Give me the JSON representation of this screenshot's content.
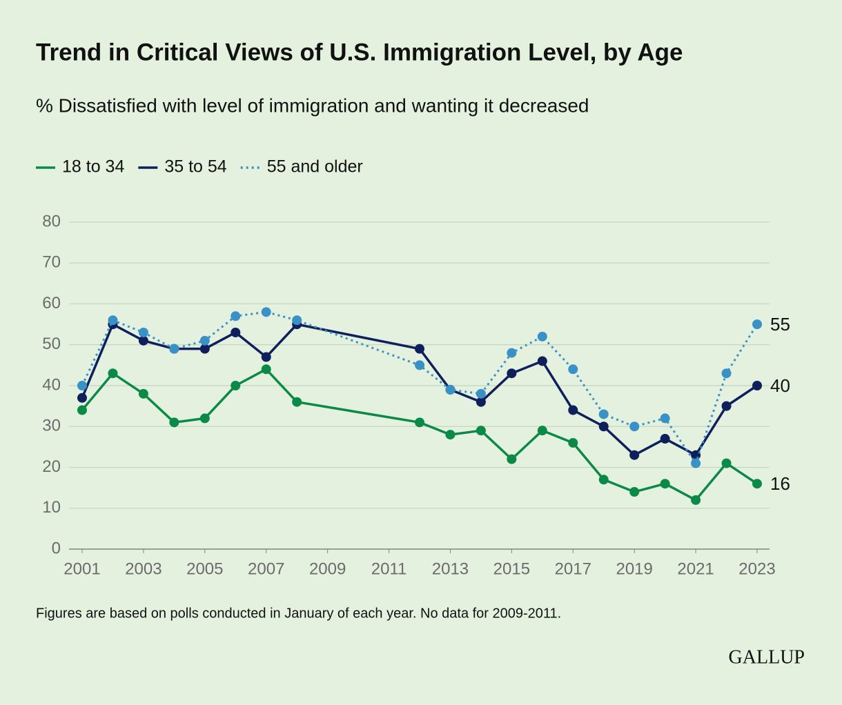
{
  "chart_data": {
    "type": "line",
    "title": "Trend in Critical Views of U.S. Immigration Level, by Age",
    "subtitle": "% Dissatisfied with level of immigration and wanting it decreased",
    "x": [
      2001,
      2002,
      2003,
      2004,
      2005,
      2006,
      2007,
      2008,
      2012,
      2013,
      2014,
      2015,
      2016,
      2017,
      2018,
      2019,
      2020,
      2021,
      2022,
      2023
    ],
    "series": [
      {
        "name": "18 to 34",
        "color": "#0b8a47",
        "line_style": "solid",
        "values": [
          34,
          43,
          38,
          31,
          32,
          40,
          44,
          36,
          31,
          28,
          29,
          22,
          29,
          26,
          17,
          14,
          16,
          12,
          21,
          16
        ]
      },
      {
        "name": "35 to 54",
        "color": "#0e1f5b",
        "line_style": "solid",
        "values": [
          37,
          55,
          51,
          49,
          49,
          53,
          47,
          55,
          49,
          39,
          36,
          43,
          46,
          34,
          30,
          23,
          27,
          23,
          35,
          40
        ]
      },
      {
        "name": "55 and older",
        "color": "#3a91c6",
        "line_style": "dotted",
        "values": [
          40,
          56,
          53,
          49,
          51,
          57,
          58,
          56,
          45,
          39,
          38,
          48,
          52,
          44,
          33,
          30,
          32,
          21,
          43,
          55
        ]
      }
    ],
    "xlim": [
      2001,
      2023
    ],
    "xticks": [
      2001,
      2003,
      2005,
      2007,
      2009,
      2011,
      2013,
      2015,
      2017,
      2019,
      2021,
      2023
    ],
    "ylim": [
      0,
      80
    ],
    "yticks": [
      0,
      10,
      20,
      30,
      40,
      50,
      60,
      70,
      80
    ],
    "grid": true,
    "note": "Figures are based on polls conducted in January of each year. No data for 2009-2011.",
    "source": "GALLUP"
  }
}
